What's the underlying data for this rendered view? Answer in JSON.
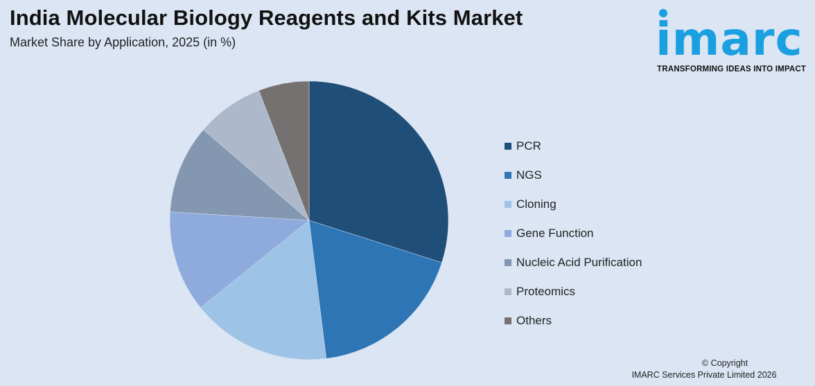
{
  "header": {
    "title": "India Molecular Biology Reagents and Kits Market",
    "subtitle": "Market Share by Application, 2025 (in %)"
  },
  "logo": {
    "wordmark": "imarc",
    "tagline": "TRANSFORMING IDEAS INTO IMPACT",
    "color": "#1aa0e0"
  },
  "footer": {
    "copyright": "© Copyright",
    "company": "IMARC Services Private Limited 2026"
  },
  "chart_data": {
    "type": "pie",
    "title": "India Molecular Biology Reagents and Kits Market",
    "subtitle": "Market Share by Application, 2025 (in %)",
    "legend_position": "right",
    "series": [
      {
        "name": "PCR",
        "value": 30.5,
        "color": "#1f4e79"
      },
      {
        "name": "NGS",
        "value": 18.5,
        "color": "#2e75b6"
      },
      {
        "name": "Cloning",
        "value": 16.5,
        "color": "#9dc3e6"
      },
      {
        "name": "Gene Function",
        "value": 12.0,
        "color": "#8faadc"
      },
      {
        "name": "Nucleic Acid Purification",
        "value": 10.5,
        "color": "#8497b0"
      },
      {
        "name": "Proteomics",
        "value": 8.0,
        "color": "#adb9ca"
      },
      {
        "name": "Others",
        "value": 6.0,
        "color": "#767171"
      }
    ]
  }
}
